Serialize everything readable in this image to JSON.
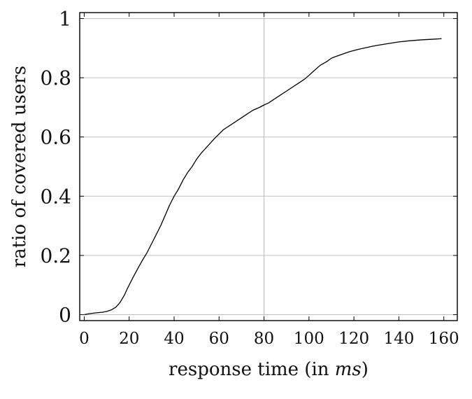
{
  "chart_data": {
    "type": "line",
    "title": "",
    "xlabel_prefix": "response time (in ",
    "xlabel_unit": "ms",
    "xlabel_suffix": ")",
    "ylabel": "ratio of covered users",
    "xlim": [
      -2,
      166
    ],
    "ylim": [
      -0.02,
      1.02
    ],
    "xticks": [
      0,
      20,
      40,
      60,
      80,
      100,
      120,
      140,
      160
    ],
    "yticks": [
      0,
      0.2,
      0.4,
      0.6,
      0.8,
      1
    ],
    "ytick_labels": [
      "0",
      "0.2",
      "0.4",
      "0.6",
      "0.8",
      "1"
    ],
    "grid": "y-major",
    "highlight_vline_x": 80,
    "line_color": "#000000",
    "grid_color": "#c0c0c0",
    "series": [
      {
        "x": [
          0,
          2,
          5,
          8,
          10,
          12,
          14,
          15,
          16,
          17,
          18,
          19,
          20,
          22,
          24,
          26,
          28,
          30,
          32,
          34,
          36,
          38,
          40,
          42,
          44,
          46,
          48,
          50,
          52,
          55,
          58,
          60,
          62,
          65,
          68,
          70,
          72,
          75,
          78,
          80,
          82,
          85,
          88,
          90,
          92,
          95,
          98,
          100,
          102,
          105,
          108,
          110,
          112,
          115,
          118,
          120,
          122,
          125,
          128,
          130,
          135,
          140,
          145,
          150,
          155,
          159
        ],
        "y": [
          0.0,
          0.003,
          0.006,
          0.008,
          0.011,
          0.016,
          0.025,
          0.033,
          0.042,
          0.055,
          0.068,
          0.085,
          0.1,
          0.13,
          0.158,
          0.185,
          0.21,
          0.24,
          0.27,
          0.3,
          0.335,
          0.37,
          0.4,
          0.425,
          0.455,
          0.48,
          0.5,
          0.525,
          0.545,
          0.57,
          0.595,
          0.61,
          0.625,
          0.64,
          0.655,
          0.665,
          0.675,
          0.69,
          0.7,
          0.708,
          0.715,
          0.73,
          0.745,
          0.755,
          0.765,
          0.78,
          0.795,
          0.808,
          0.822,
          0.842,
          0.855,
          0.866,
          0.872,
          0.88,
          0.888,
          0.892,
          0.896,
          0.901,
          0.906,
          0.909,
          0.915,
          0.921,
          0.925,
          0.928,
          0.93,
          0.932
        ]
      }
    ]
  }
}
